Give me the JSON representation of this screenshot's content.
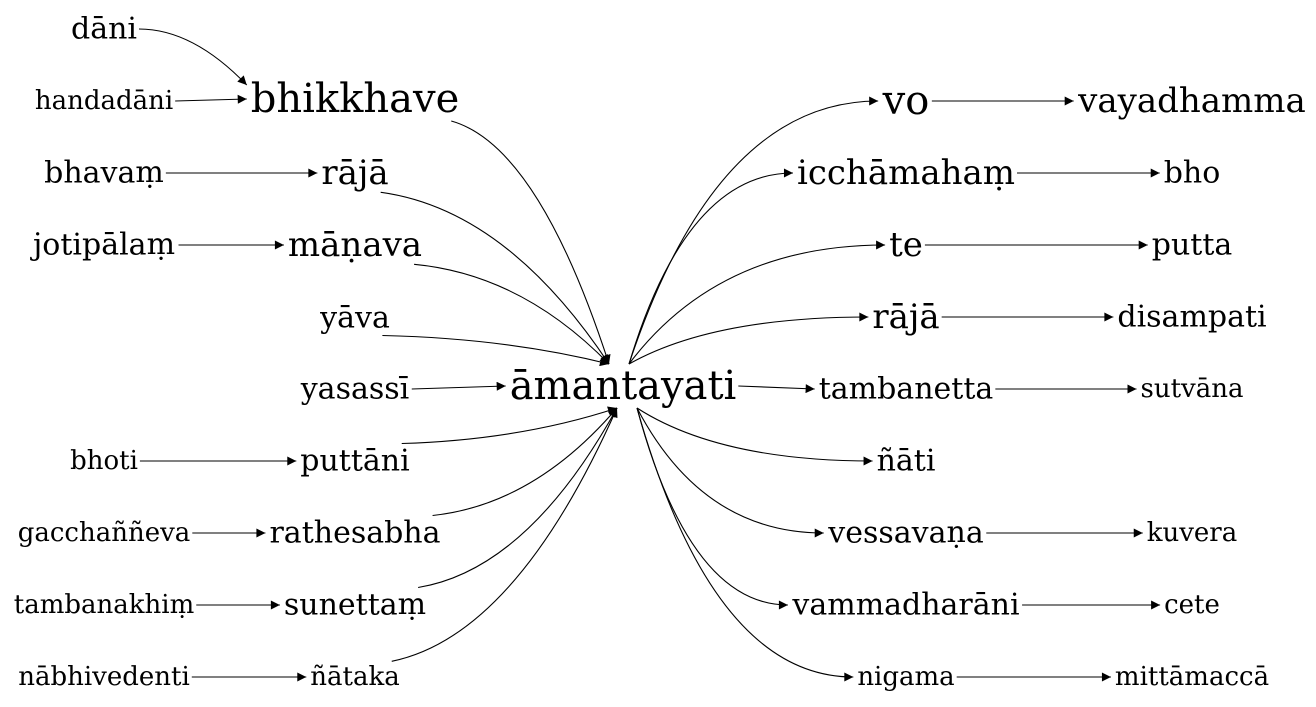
{
  "center": {
    "id": "amantayati",
    "label": "āmantayati",
    "size": 40
  },
  "left_sources": [
    {
      "id": "dani",
      "label": "dāni",
      "size": 30
    },
    {
      "id": "handadani",
      "label": "handadāni",
      "size": 26
    },
    {
      "id": "bhavam",
      "label": "bhavaṃ",
      "size": 30
    },
    {
      "id": "jotipalam",
      "label": "jotipālaṃ",
      "size": 30
    },
    {
      "id": "yava",
      "label": "yāva",
      "size": 30
    },
    {
      "id": "yasassi",
      "label": "yasassī",
      "size": 30
    },
    {
      "id": "bhoti",
      "label": "bhoti",
      "size": 26
    },
    {
      "id": "gacchanneva",
      "label": "gacchaññeva",
      "size": 26
    },
    {
      "id": "tambanakhim",
      "label": "tambanakhiṃ",
      "size": 26
    },
    {
      "id": "nabhivedenti",
      "label": "nābhivedenti",
      "size": 26
    }
  ],
  "left_mid": [
    {
      "id": "bhikkhave",
      "label": "bhikkhave",
      "size": 40
    },
    {
      "id": "raja_l",
      "label": "rājā",
      "size": 34
    },
    {
      "id": "manava",
      "label": "māṇava",
      "size": 34
    },
    {
      "id": "puttani",
      "label": "puttāni",
      "size": 30
    },
    {
      "id": "rathesabha",
      "label": "rathesabha",
      "size": 30
    },
    {
      "id": "sunettam",
      "label": "sunettaṃ",
      "size": 30
    },
    {
      "id": "nataka",
      "label": "ñātaka",
      "size": 26
    }
  ],
  "right_mid": [
    {
      "id": "vo",
      "label": "vo",
      "size": 40
    },
    {
      "id": "icchamaham",
      "label": "icchāmahaṃ",
      "size": 34
    },
    {
      "id": "te",
      "label": "te",
      "size": 34
    },
    {
      "id": "raja_r",
      "label": "rājā",
      "size": 34
    },
    {
      "id": "tambanetta",
      "label": "tambanetta",
      "size": 30
    },
    {
      "id": "nati",
      "label": "ñāti",
      "size": 30
    },
    {
      "id": "vessavana",
      "label": "vessavaṇa",
      "size": 30
    },
    {
      "id": "vammadharani",
      "label": "vammadharāni",
      "size": 30
    },
    {
      "id": "nigama",
      "label": "nigama",
      "size": 26
    }
  ],
  "right_targets": [
    {
      "id": "vayadhamma",
      "label": "vayadhamma",
      "size": 34
    },
    {
      "id": "bho",
      "label": "bho",
      "size": 30
    },
    {
      "id": "putta",
      "label": "putta",
      "size": 30
    },
    {
      "id": "disampati",
      "label": "disampati",
      "size": 30
    },
    {
      "id": "sutvana",
      "label": "sutvāna",
      "size": 26
    },
    {
      "id": "kuvera",
      "label": "kuvera",
      "size": 26
    },
    {
      "id": "cete",
      "label": "cete",
      "size": 26
    },
    {
      "id": "mittamacca",
      "label": "mittāmaccā",
      "size": 26
    }
  ],
  "edges": [
    [
      "dani",
      "bhikkhave"
    ],
    [
      "handadani",
      "bhikkhave"
    ],
    [
      "bhavam",
      "raja_l"
    ],
    [
      "jotipalam",
      "manava"
    ],
    [
      "bhoti",
      "puttani"
    ],
    [
      "gacchanneva",
      "rathesabha"
    ],
    [
      "tambanakhim",
      "sunettam"
    ],
    [
      "nabhivedenti",
      "nataka"
    ],
    [
      "bhikkhave",
      "amantayati"
    ],
    [
      "raja_l",
      "amantayati"
    ],
    [
      "manava",
      "amantayati"
    ],
    [
      "yava",
      "amantayati"
    ],
    [
      "yasassi",
      "amantayati"
    ],
    [
      "puttani",
      "amantayati"
    ],
    [
      "rathesabha",
      "amantayati"
    ],
    [
      "sunettam",
      "amantayati"
    ],
    [
      "nataka",
      "amantayati"
    ],
    [
      "amantayati",
      "vo"
    ],
    [
      "amantayati",
      "icchamaham"
    ],
    [
      "amantayati",
      "te"
    ],
    [
      "amantayati",
      "raja_r"
    ],
    [
      "amantayati",
      "tambanetta"
    ],
    [
      "amantayati",
      "nati"
    ],
    [
      "amantayati",
      "vessavana"
    ],
    [
      "amantayati",
      "vammadharani"
    ],
    [
      "amantayati",
      "nigama"
    ],
    [
      "vo",
      "vayadhamma"
    ],
    [
      "icchamaham",
      "bho"
    ],
    [
      "te",
      "putta"
    ],
    [
      "raja_r",
      "disampati"
    ],
    [
      "tambanetta",
      "sutvana"
    ],
    [
      "vessavana",
      "kuvera"
    ],
    [
      "vammadharani",
      "cete"
    ],
    [
      "nigama",
      "mittamacca"
    ]
  ]
}
